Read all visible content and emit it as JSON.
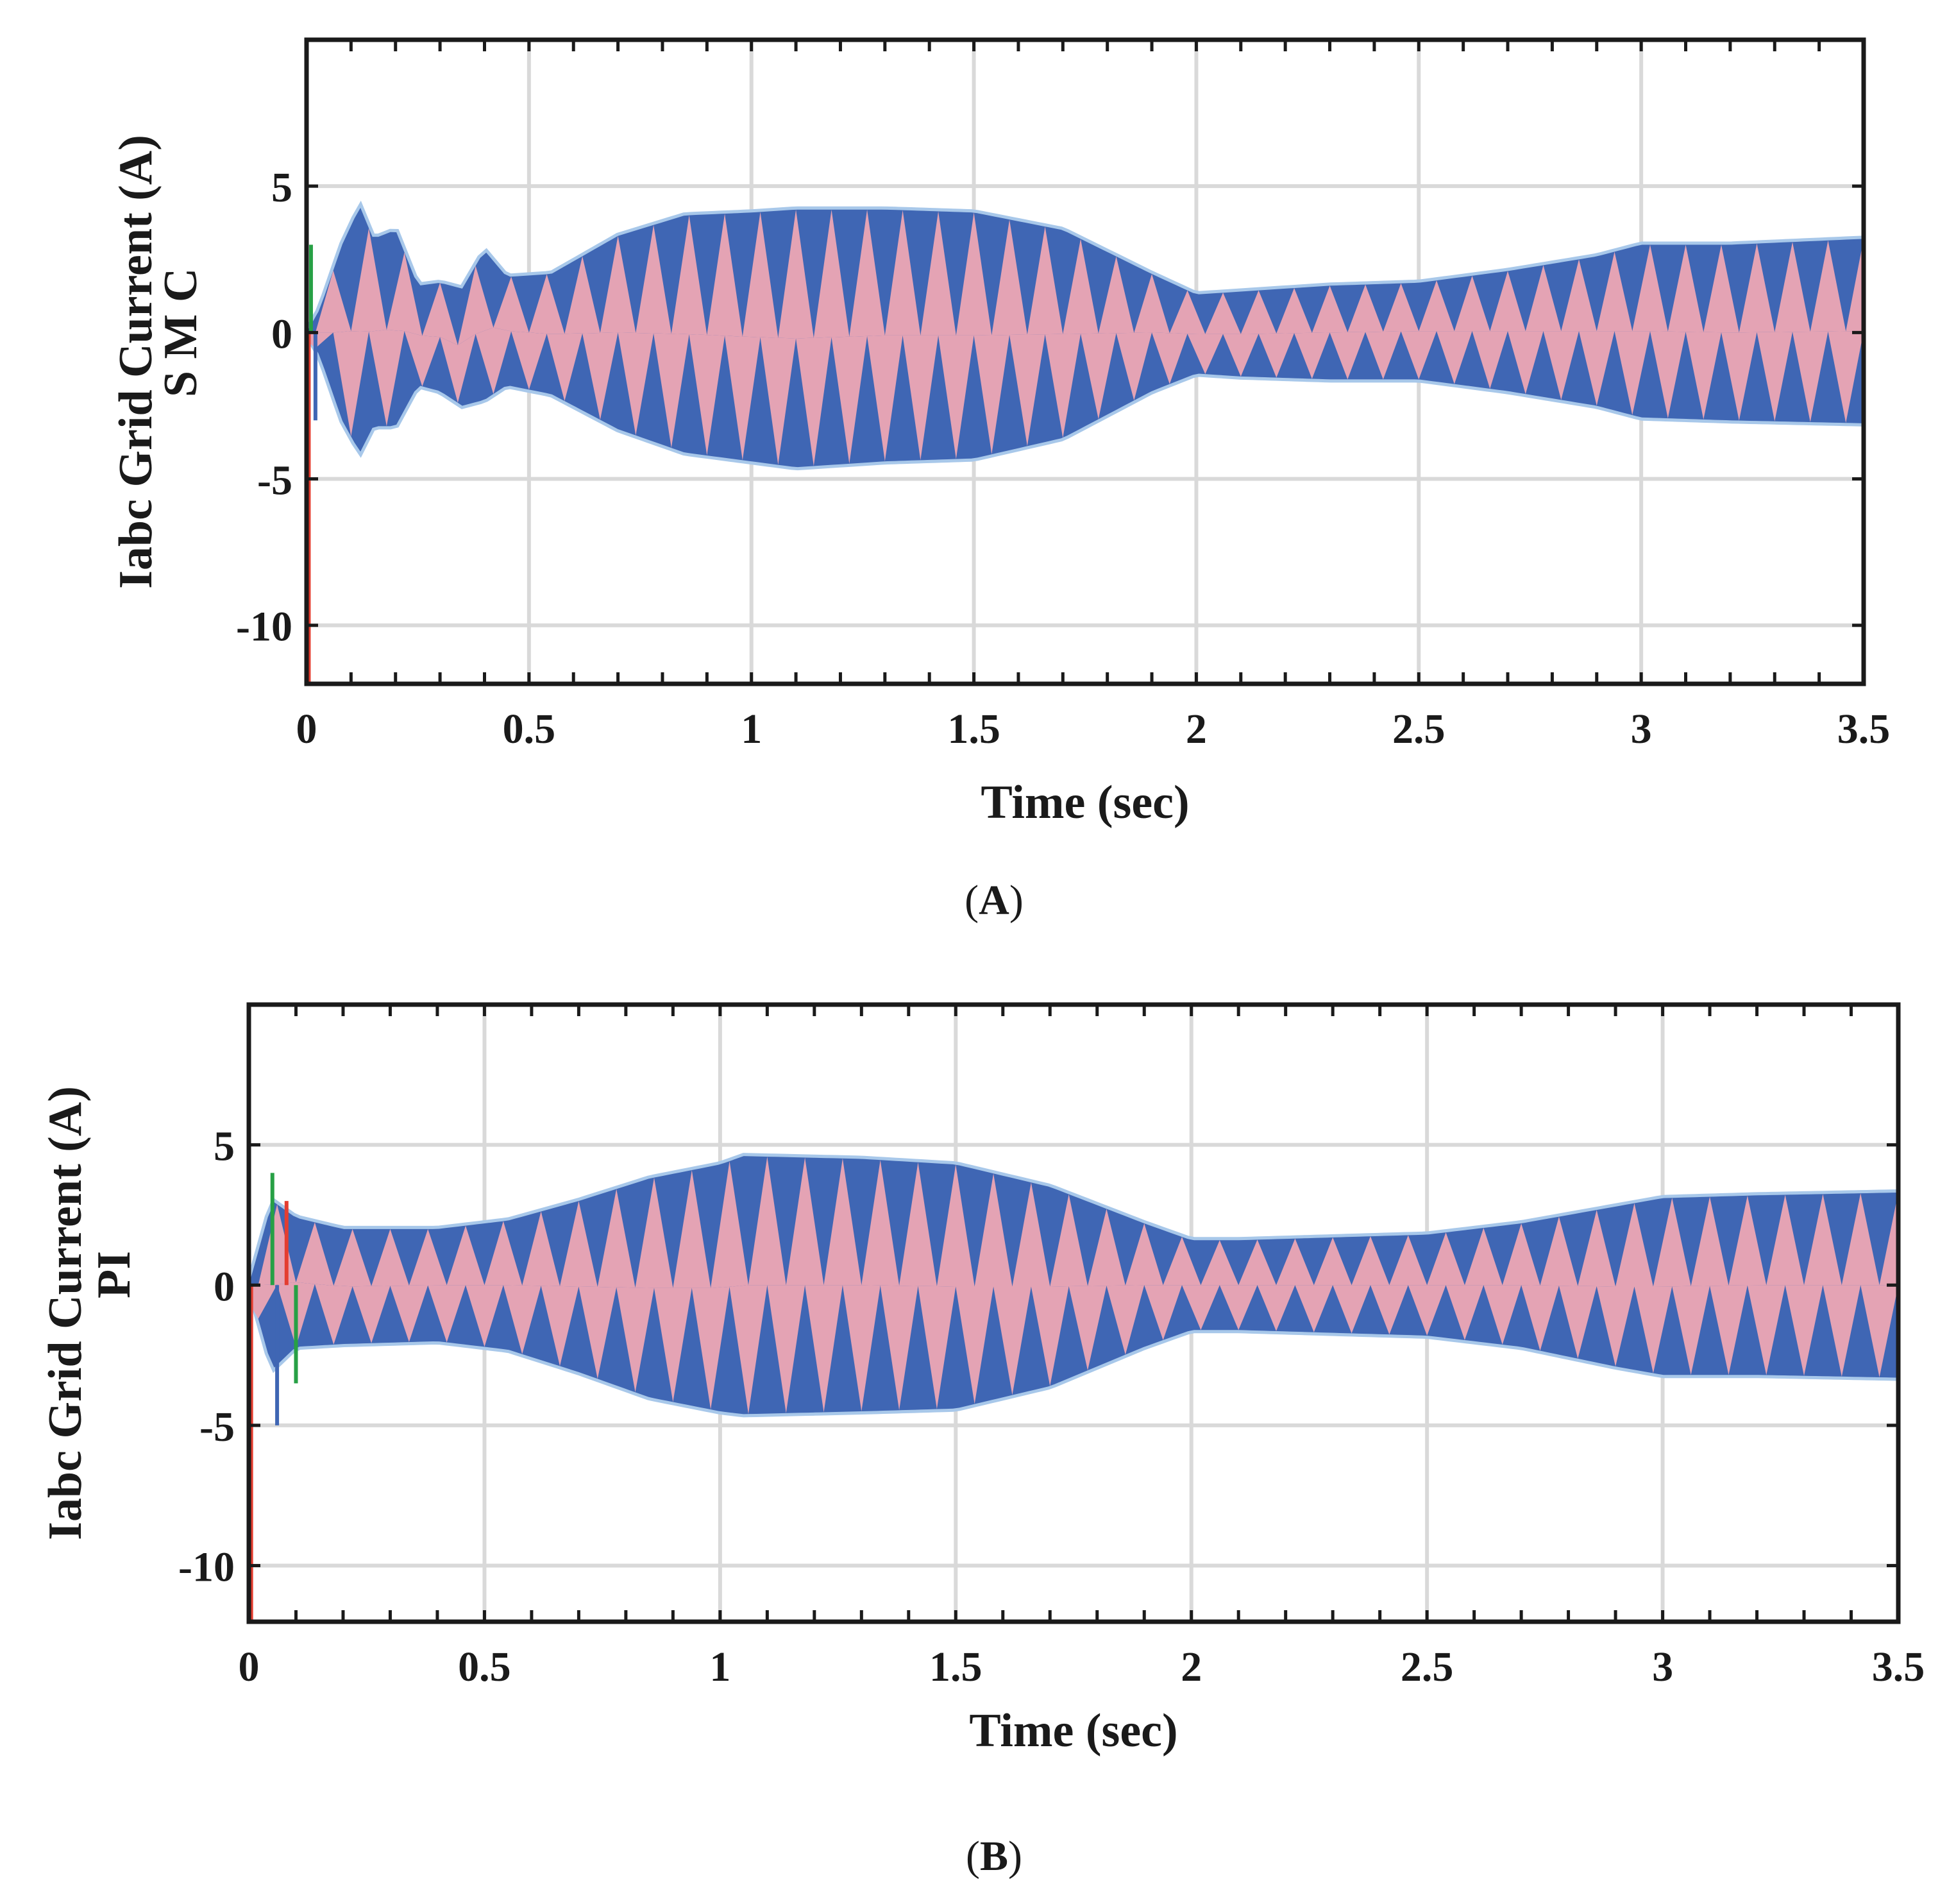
{
  "figure": {
    "colors": {
      "blue": "#3f66b4",
      "pink": "#e4a3b4",
      "envelope": "#a8c8ea",
      "red_spike": "#e43d30",
      "green_spike": "#27a045",
      "grid": "#d9d9d9",
      "axis": "#1a1a1a"
    }
  },
  "chart_data": [
    {
      "type": "line",
      "panel": "A",
      "caption_prefix": "(",
      "caption_letter": "A",
      "caption_suffix": ")",
      "title": "",
      "xlabel": "Time (sec)",
      "ylabel": "Iabc Grid Current (A)",
      "ylabel2": "S M C",
      "xlim": [
        0,
        3.5
      ],
      "ylim": [
        -12,
        10
      ],
      "xticks": [
        0,
        0.5,
        1,
        1.5,
        2,
        2.5,
        3,
        3.5
      ],
      "xtick_labels": [
        "0",
        "0.5",
        "1",
        "1.5",
        "2",
        "2.5",
        "3",
        "3.5"
      ],
      "yticks": [
        5,
        0,
        -5,
        -10
      ],
      "ytick_labels": [
        "5",
        "0",
        "-5",
        "-10"
      ],
      "grid": true,
      "series": [
        {
          "name": "phase-envelope upper",
          "x": [
            0.0,
            0.03,
            0.08,
            0.12,
            0.15,
            0.2,
            0.25,
            0.3,
            0.35,
            0.4,
            0.45,
            0.55,
            0.7,
            0.85,
            1.0,
            1.1,
            1.3,
            1.5,
            1.7,
            1.9,
            2.0,
            2.1,
            2.3,
            2.5,
            2.7,
            2.9,
            3.0,
            3.2,
            3.5
          ],
          "values": [
            0.0,
            0.8,
            3.0,
            4.3,
            3.2,
            3.5,
            1.6,
            1.7,
            1.5,
            2.8,
            1.9,
            2.0,
            3.3,
            4.0,
            4.1,
            4.2,
            4.2,
            4.1,
            3.5,
            2.0,
            1.3,
            1.4,
            1.6,
            1.7,
            2.1,
            2.6,
            3.0,
            3.0,
            3.2
          ]
        },
        {
          "name": "phase-envelope lower",
          "x": [
            0.0,
            0.03,
            0.08,
            0.12,
            0.15,
            0.2,
            0.25,
            0.3,
            0.35,
            0.4,
            0.45,
            0.55,
            0.7,
            0.85,
            1.0,
            1.1,
            1.3,
            1.5,
            1.7,
            1.9,
            2.0,
            2.1,
            2.3,
            2.5,
            2.7,
            2.9,
            3.0,
            3.2,
            3.5
          ],
          "values": [
            0.0,
            -0.8,
            -3.0,
            -4.1,
            -3.2,
            -3.2,
            -1.8,
            -2.0,
            -2.5,
            -2.3,
            -1.8,
            -2.1,
            -3.3,
            -4.1,
            -4.4,
            -4.6,
            -4.4,
            -4.3,
            -3.6,
            -2.0,
            -1.4,
            -1.5,
            -1.6,
            -1.6,
            -2.0,
            -2.5,
            -2.9,
            -3.0,
            -3.1
          ]
        },
        {
          "name": "startup transient spikes",
          "x": [
            0.0,
            0.005,
            0.01,
            0.02
          ],
          "values": [
            10.0,
            -12.0,
            3.0,
            -3.0
          ]
        }
      ]
    },
    {
      "type": "line",
      "panel": "B",
      "caption_prefix": "(",
      "caption_letter": "B",
      "caption_suffix": ")",
      "title": "",
      "xlabel": "Time (sec)",
      "ylabel": "Iabc Grid Current (A)",
      "ylabel2": "PI",
      "xlim": [
        0,
        3.5
      ],
      "ylim": [
        -12,
        10
      ],
      "xticks": [
        0,
        0.5,
        1,
        1.5,
        2,
        2.5,
        3,
        3.5
      ],
      "xtick_labels": [
        "0",
        "0.5",
        "1",
        "1.5",
        "2",
        "2.5",
        "3",
        "3.5"
      ],
      "yticks": [
        5,
        0,
        -5,
        -10
      ],
      "ytick_labels": [
        "5",
        "0",
        "-5",
        "-10"
      ],
      "grid": true,
      "series": [
        {
          "name": "phase-envelope upper",
          "x": [
            0.0,
            0.05,
            0.1,
            0.2,
            0.4,
            0.55,
            0.7,
            0.85,
            1.0,
            1.05,
            1.3,
            1.5,
            1.7,
            1.9,
            2.0,
            2.1,
            2.3,
            2.5,
            2.7,
            2.9,
            3.0,
            3.2,
            3.5
          ],
          "values": [
            0.0,
            3.0,
            2.4,
            2.0,
            2.0,
            2.3,
            3.0,
            3.8,
            4.3,
            4.6,
            4.5,
            4.3,
            3.5,
            2.2,
            1.6,
            1.6,
            1.7,
            1.8,
            2.2,
            2.8,
            3.1,
            3.2,
            3.3
          ]
        },
        {
          "name": "phase-envelope lower",
          "x": [
            0.0,
            0.05,
            0.1,
            0.2,
            0.4,
            0.55,
            0.7,
            0.85,
            1.0,
            1.05,
            1.3,
            1.5,
            1.7,
            1.9,
            2.0,
            2.1,
            2.3,
            2.5,
            2.7,
            2.9,
            3.0,
            3.2,
            3.5
          ],
          "values": [
            0.0,
            -3.0,
            -2.2,
            -2.1,
            -2.0,
            -2.3,
            -3.1,
            -4.0,
            -4.5,
            -4.6,
            -4.5,
            -4.4,
            -3.6,
            -2.2,
            -1.6,
            -1.6,
            -1.7,
            -1.8,
            -2.2,
            -2.9,
            -3.2,
            -3.2,
            -3.3
          ]
        },
        {
          "name": "startup transient spikes",
          "x": [
            0.0,
            0.005,
            0.05,
            0.06,
            0.08,
            0.1
          ],
          "values": [
            7.5,
            -12.0,
            4.0,
            -5.0,
            3.0,
            -3.5
          ]
        }
      ]
    }
  ]
}
